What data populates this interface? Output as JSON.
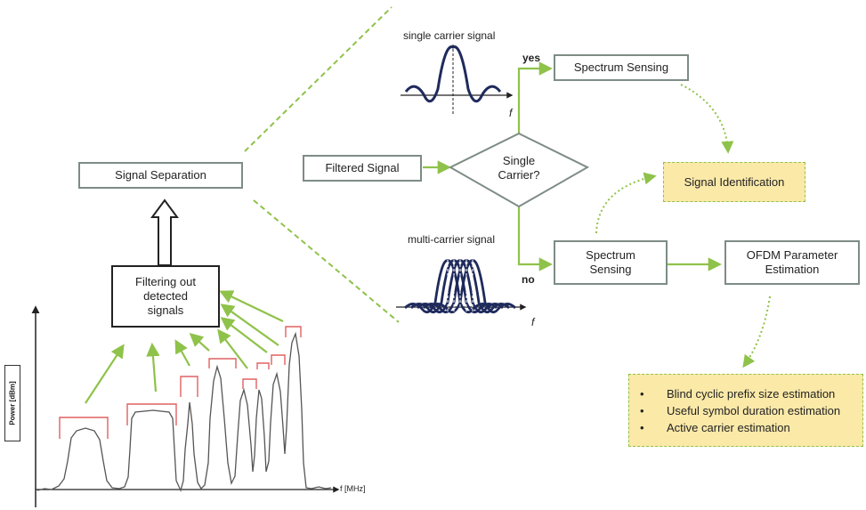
{
  "boxes": {
    "signal_separation": "Signal Separation",
    "filtering": "Filtering out detected signals",
    "filtered_signal": "Filtered Signal",
    "single_carrier_q": "Single Carrier?",
    "spectrum_sensing_top": "Spectrum Sensing",
    "signal_identification": "Signal Identification",
    "spectrum_sensing_bottom": "Spectrum Sensing",
    "ofdm_estimation": "OFDM Parameter Estimation"
  },
  "labels": {
    "single_carrier_signal": "single carrier signal",
    "multi_carrier_signal": "multi-carrier signal",
    "yes": "yes",
    "no": "no",
    "f_top": "f",
    "f_bottom": "f",
    "power_axis": "Power [dBm]",
    "freq_axis": "f [MHz]"
  },
  "estimation_items": [
    "Blind cyclic prefix size estimation",
    "Useful symbol duration estimation",
    "Active carrier estimation"
  ],
  "colors": {
    "arrow_green": "#8fc24a",
    "box_border": "#7d8c85",
    "curve_navy": "#1f2a5c",
    "bracket_red": "#e06060",
    "highlight_yellow": "#fbe9a8"
  }
}
